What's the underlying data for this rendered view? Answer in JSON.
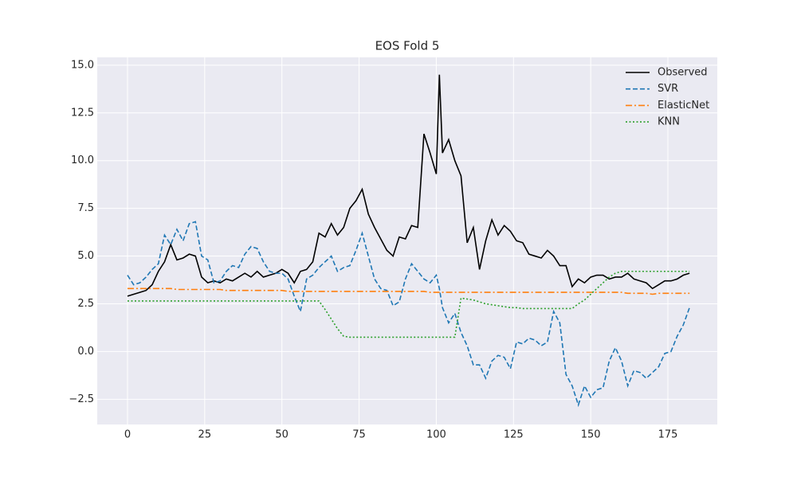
{
  "chart_data": {
    "type": "line",
    "title": "EOS Fold 5",
    "x": [
      0,
      2,
      4,
      6,
      8,
      10,
      12,
      14,
      16,
      18,
      20,
      22,
      24,
      26,
      28,
      30,
      32,
      34,
      36,
      38,
      40,
      42,
      44,
      46,
      48,
      50,
      52,
      54,
      56,
      58,
      60,
      62,
      64,
      66,
      68,
      70,
      72,
      74,
      76,
      78,
      80,
      82,
      84,
      86,
      88,
      90,
      92,
      94,
      96,
      98,
      100,
      101,
      102,
      104,
      106,
      108,
      110,
      112,
      114,
      116,
      118,
      120,
      122,
      124,
      126,
      128,
      130,
      132,
      134,
      136,
      138,
      140,
      142,
      144,
      146,
      148,
      150,
      152,
      154,
      156,
      158,
      160,
      162,
      164,
      166,
      168,
      170,
      172,
      174,
      176,
      178,
      180,
      182
    ],
    "series": [
      {
        "name": "Observed",
        "color": "#000000",
        "linestyle": "solid",
        "values": [
          2.9,
          3.0,
          3.1,
          3.2,
          3.5,
          4.2,
          4.7,
          5.6,
          4.8,
          4.9,
          5.1,
          5.0,
          3.9,
          3.6,
          3.7,
          3.6,
          3.8,
          3.7,
          3.9,
          4.1,
          3.9,
          4.2,
          3.9,
          4.0,
          4.1,
          4.3,
          4.1,
          3.6,
          4.2,
          4.3,
          4.7,
          6.2,
          6.0,
          6.7,
          6.1,
          6.5,
          7.5,
          7.9,
          8.5,
          7.2,
          6.5,
          5.9,
          5.3,
          5.0,
          6.0,
          5.9,
          6.6,
          6.5,
          11.4,
          10.4,
          9.3,
          14.5,
          10.4,
          11.1,
          10.0,
          9.2,
          5.7,
          6.5,
          4.3,
          5.8,
          6.9,
          6.1,
          6.6,
          6.3,
          5.8,
          5.7,
          5.1,
          5.0,
          4.9,
          5.3,
          5.0,
          4.5,
          4.5,
          3.4,
          3.8,
          3.6,
          3.9,
          4.0,
          4.0,
          3.8,
          3.9,
          3.9,
          4.1,
          3.8,
          3.7,
          3.6,
          3.3,
          3.5,
          3.7,
          3.7,
          3.8,
          4.0,
          4.1
        ]
      },
      {
        "name": "SVR",
        "color": "#1f77b4",
        "linestyle": "dashed",
        "values": [
          4.0,
          3.5,
          3.6,
          3.9,
          4.3,
          4.6,
          6.1,
          5.6,
          6.4,
          5.8,
          6.7,
          6.8,
          5.0,
          4.8,
          3.6,
          3.7,
          4.2,
          4.5,
          4.4,
          5.1,
          5.5,
          5.4,
          4.7,
          4.2,
          4.1,
          4.1,
          3.8,
          2.9,
          2.1,
          3.8,
          4.0,
          4.4,
          4.7,
          5.0,
          4.2,
          4.4,
          4.5,
          5.3,
          6.2,
          5.0,
          3.8,
          3.3,
          3.2,
          2.4,
          2.6,
          3.8,
          4.6,
          4.2,
          3.8,
          3.6,
          4.0,
          3.3,
          2.3,
          1.5,
          2.0,
          1.0,
          0.3,
          -0.7,
          -0.7,
          -1.4,
          -0.5,
          -0.2,
          -0.3,
          -0.9,
          0.5,
          0.4,
          0.7,
          0.6,
          0.3,
          0.5,
          2.1,
          1.5,
          -1.2,
          -1.8,
          -2.8,
          -1.8,
          -2.4,
          -2.0,
          -1.9,
          -0.5,
          0.2,
          -0.5,
          -1.8,
          -1.0,
          -1.1,
          -1.4,
          -1.1,
          -0.8,
          -0.1,
          0.0,
          0.8,
          1.4,
          2.3
        ]
      },
      {
        "name": "ElasticNet",
        "color": "#ff7f0e",
        "linestyle": "dashdot",
        "values": [
          3.3,
          3.3,
          3.3,
          3.3,
          3.3,
          3.3,
          3.3,
          3.3,
          3.25,
          3.25,
          3.25,
          3.25,
          3.25,
          3.25,
          3.25,
          3.25,
          3.2,
          3.2,
          3.2,
          3.2,
          3.2,
          3.2,
          3.2,
          3.2,
          3.2,
          3.2,
          3.15,
          3.15,
          3.15,
          3.15,
          3.15,
          3.15,
          3.15,
          3.15,
          3.15,
          3.15,
          3.15,
          3.15,
          3.15,
          3.15,
          3.15,
          3.15,
          3.15,
          3.15,
          3.15,
          3.15,
          3.15,
          3.15,
          3.15,
          3.1,
          3.1,
          3.1,
          3.1,
          3.1,
          3.1,
          3.1,
          3.1,
          3.1,
          3.1,
          3.1,
          3.1,
          3.1,
          3.1,
          3.1,
          3.1,
          3.1,
          3.1,
          3.1,
          3.1,
          3.1,
          3.1,
          3.1,
          3.1,
          3.1,
          3.1,
          3.1,
          3.1,
          3.1,
          3.1,
          3.1,
          3.1,
          3.1,
          3.05,
          3.05,
          3.05,
          3.05,
          3.0,
          3.05,
          3.05,
          3.05,
          3.05,
          3.05,
          3.05
        ]
      },
      {
        "name": "KNN",
        "color": "#2ca02c",
        "linestyle": "dotted",
        "values": [
          2.65,
          2.65,
          2.65,
          2.65,
          2.65,
          2.65,
          2.65,
          2.65,
          2.65,
          2.65,
          2.65,
          2.65,
          2.65,
          2.65,
          2.65,
          2.65,
          2.65,
          2.65,
          2.65,
          2.65,
          2.65,
          2.65,
          2.65,
          2.65,
          2.65,
          2.65,
          2.65,
          2.65,
          2.65,
          2.65,
          2.65,
          2.65,
          2.2,
          1.7,
          1.2,
          0.8,
          0.75,
          0.75,
          0.75,
          0.75,
          0.75,
          0.75,
          0.75,
          0.75,
          0.75,
          0.75,
          0.75,
          0.75,
          0.75,
          0.75,
          0.75,
          0.75,
          0.75,
          0.75,
          0.75,
          2.8,
          2.75,
          2.7,
          2.6,
          2.5,
          2.45,
          2.4,
          2.35,
          2.3,
          2.3,
          2.25,
          2.25,
          2.25,
          2.25,
          2.25,
          2.25,
          2.25,
          2.25,
          2.25,
          2.5,
          2.7,
          3.0,
          3.3,
          3.6,
          3.9,
          4.1,
          4.2,
          4.2,
          4.2,
          4.2,
          4.2,
          4.2,
          4.2,
          4.2,
          4.2,
          4.2,
          4.2,
          4.2
        ]
      }
    ],
    "xlim": [
      -9.8,
      191
    ],
    "ylim": [
      -3.82,
      15.41
    ],
    "xticks": [
      0,
      25,
      50,
      75,
      100,
      125,
      150,
      175
    ],
    "yticks": [
      {
        "value": -2.5,
        "label": "−2.5"
      },
      {
        "value": 0,
        "label": "0.0"
      },
      {
        "value": 2.5,
        "label": "2.5"
      },
      {
        "value": 5,
        "label": "5.0"
      },
      {
        "value": 7.5,
        "label": "7.5"
      },
      {
        "value": 10,
        "label": "10.0"
      },
      {
        "value": 12.5,
        "label": "12.5"
      },
      {
        "value": 15,
        "label": "15.0"
      }
    ],
    "grid": true,
    "legend": "upper right"
  }
}
